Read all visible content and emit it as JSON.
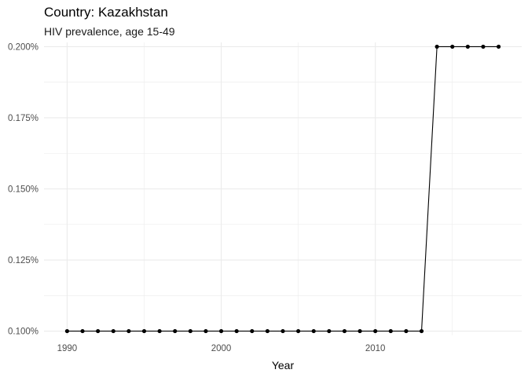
{
  "chart_data": {
    "type": "line",
    "title": "Country: Kazakhstan",
    "subtitle": "HIV prevalence, age 15-49",
    "xlabel": "Year",
    "ylabel": "",
    "xlim": [
      1988.5,
      2019.5
    ],
    "ylim": [
      0.0985,
      0.2015
    ],
    "x_ticks": [
      1990,
      2000,
      2010
    ],
    "x_tick_labels": [
      "1990",
      "2000",
      "2010"
    ],
    "y_ticks": [
      0.1,
      0.125,
      0.15,
      0.175,
      0.2
    ],
    "y_tick_labels": [
      "0.100%",
      "0.125%",
      "0.150%",
      "0.175%",
      "0.200%"
    ],
    "grid": true,
    "legend": "none",
    "line_color": "#000000",
    "grid_color": "#ebebeb",
    "x": [
      1990,
      1991,
      1992,
      1993,
      1994,
      1995,
      1996,
      1997,
      1998,
      1999,
      2000,
      2001,
      2002,
      2003,
      2004,
      2005,
      2006,
      2007,
      2008,
      2009,
      2010,
      2011,
      2012,
      2013,
      2014,
      2015,
      2016,
      2017,
      2018
    ],
    "series": [
      {
        "values": [
          0.1,
          0.1,
          0.1,
          0.1,
          0.1,
          0.1,
          0.1,
          0.1,
          0.1,
          0.1,
          0.1,
          0.1,
          0.1,
          0.1,
          0.1,
          0.1,
          0.1,
          0.1,
          0.1,
          0.1,
          0.1,
          0.1,
          0.1,
          0.1,
          0.2,
          0.2,
          0.2,
          0.2,
          0.2
        ]
      }
    ]
  }
}
